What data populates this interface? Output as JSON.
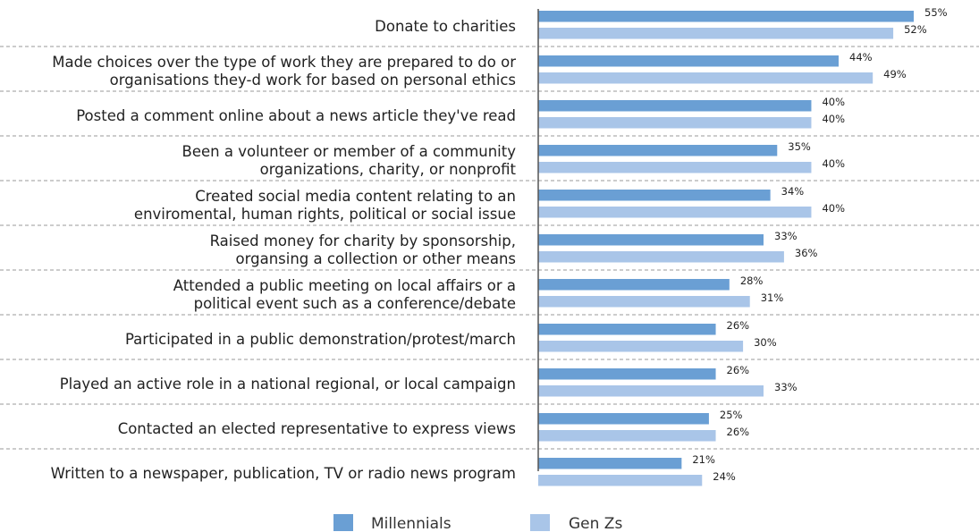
{
  "chart_data": {
    "type": "bar",
    "orientation": "horizontal",
    "categories": [
      [
        "Donate to charities"
      ],
      [
        "Made choices over the type of work they are prepared to do or",
        "organisations they-d work for based on personal ethics"
      ],
      [
        "Posted a comment online about a news article they've read"
      ],
      [
        "Been a volunteer or member of a community",
        "organizations, charity, or nonprofit"
      ],
      [
        "Created social media content relating to an",
        "enviromental, human rights, political or social issue"
      ],
      [
        "Raised money for charity by sponsorship,",
        "organsing a collection or other means"
      ],
      [
        "Attended a public meeting on local affairs or a",
        "political event such as a conference/debate"
      ],
      [
        "Participated in a public demonstration/protest/march"
      ],
      [
        "Played an active role in a national regional, or local campaign"
      ],
      [
        "Contacted an elected representative to express views"
      ],
      [
        "Written to a newspaper, publication, TV or radio news program"
      ]
    ],
    "series": [
      {
        "name": "Millennials",
        "color": "#6a9fd4",
        "values": [
          55,
          44,
          40,
          35,
          34,
          33,
          28,
          26,
          26,
          25,
          21
        ],
        "labels": [
          "55%",
          "44%",
          "40%",
          "35%",
          "34%",
          "33%",
          "28%",
          "26%",
          "26%",
          "25%",
          "21%"
        ]
      },
      {
        "name": "Gen Zs",
        "color": "#a9c5e8",
        "values": [
          52,
          49,
          40,
          40,
          40,
          36,
          31,
          30,
          33,
          26,
          24
        ],
        "labels": [
          "52%",
          "49%",
          "40%",
          "40%",
          "40%",
          "36%",
          "31%",
          "30%",
          "33%",
          "26%",
          "24%"
        ]
      }
    ],
    "xlim": [
      0,
      55
    ],
    "legend_position": "bottom",
    "separators": "dashed",
    "title": "",
    "xlabel": "",
    "ylabel": ""
  }
}
